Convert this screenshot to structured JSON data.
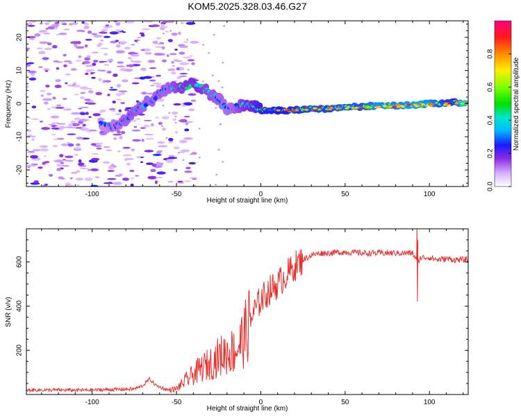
{
  "figure_title": "KOM5.2025.328.03.46.G27",
  "chart_data": [
    {
      "type": "heatmap",
      "name": "spectrogram",
      "title": "KOM5.2025.328.03.46.G27",
      "xlabel": "Height of straight line (km)",
      "ylabel": "Frequency (Hz)",
      "xlim": [
        -139,
        123
      ],
      "ylim": [
        -25,
        25
      ],
      "xticks": [
        -100,
        -50,
        0,
        50,
        100
      ],
      "yticks": [
        -20,
        -10,
        0,
        10,
        20
      ],
      "colorbar": {
        "label": "Normalized spectral amplitude",
        "range": [
          0,
          1
        ],
        "ticks": [
          "0.0",
          "0.2",
          "0.4",
          "0.6",
          "0.8"
        ]
      },
      "ridge": [
        {
          "x": -95,
          "y": -6,
          "a": 0.22
        },
        {
          "x": -90,
          "y": -7,
          "a": 0.25
        },
        {
          "x": -85,
          "y": -6.5,
          "a": 0.28
        },
        {
          "x": -80,
          "y": -5,
          "a": 0.3
        },
        {
          "x": -75,
          "y": -2,
          "a": 0.32
        },
        {
          "x": -70,
          "y": -0.5,
          "a": 0.3
        },
        {
          "x": -65,
          "y": 1,
          "a": 0.3
        },
        {
          "x": -60,
          "y": 3,
          "a": 0.3
        },
        {
          "x": -55,
          "y": 5,
          "a": 0.3
        },
        {
          "x": -50,
          "y": 4.5,
          "a": 0.35
        },
        {
          "x": -45,
          "y": 5,
          "a": 0.38
        },
        {
          "x": -40,
          "y": 6,
          "a": 0.4
        },
        {
          "x": -35,
          "y": 5,
          "a": 0.38
        },
        {
          "x": -30,
          "y": 3,
          "a": 0.33
        },
        {
          "x": -25,
          "y": 1.5,
          "a": 0.3
        },
        {
          "x": -20,
          "y": -2,
          "a": 0.28
        },
        {
          "x": -15,
          "y": -1,
          "a": 0.3
        },
        {
          "x": -10,
          "y": -0.5,
          "a": 0.38
        },
        {
          "x": -5,
          "y": -0.5,
          "a": 0.42
        },
        {
          "x": 0,
          "y": -2,
          "a": 0.5
        },
        {
          "x": 10,
          "y": -2,
          "a": 0.55
        },
        {
          "x": 20,
          "y": -2,
          "a": 0.58
        },
        {
          "x": 30,
          "y": -1.5,
          "a": 0.62
        },
        {
          "x": 40,
          "y": -1.5,
          "a": 0.6
        },
        {
          "x": 50,
          "y": -1,
          "a": 0.65
        },
        {
          "x": 60,
          "y": -1,
          "a": 0.62
        },
        {
          "x": 70,
          "y": -0.5,
          "a": 0.7
        },
        {
          "x": 80,
          "y": -0.5,
          "a": 0.68
        },
        {
          "x": 90,
          "y": -0.5,
          "a": 0.72
        },
        {
          "x": 100,
          "y": 0,
          "a": 0.7
        },
        {
          "x": 110,
          "y": 0,
          "a": 0.6
        },
        {
          "x": 115,
          "y": 0.5,
          "a": 0.55
        },
        {
          "x": 122,
          "y": 0,
          "a": 0.9
        }
      ]
    },
    {
      "type": "line",
      "name": "snr",
      "xlabel": "Height of straight line (km)",
      "ylabel": "SNR (v/v)",
      "xlim": [
        -139,
        123
      ],
      "ylim": [
        0,
        750
      ],
      "xticks": [
        -100,
        -50,
        0,
        50,
        100
      ],
      "yticks": [
        200,
        400,
        600
      ],
      "color": "#e8312f",
      "series": [
        {
          "name": "SNR",
          "x": [
            -139,
            -100,
            -75,
            -70,
            -66,
            -62,
            -55,
            -50,
            -45,
            -40,
            -35,
            -30,
            -25,
            -20,
            -15,
            -10,
            -5,
            0,
            5,
            10,
            15,
            20,
            25,
            30,
            35,
            40,
            50,
            60,
            70,
            80,
            90,
            93,
            95,
            100,
            105,
            110,
            115,
            123
          ],
          "y": [
            20,
            20,
            25,
            40,
            70,
            40,
            20,
            25,
            60,
            90,
            120,
            140,
            170,
            190,
            200,
            260,
            360,
            430,
            470,
            500,
            540,
            580,
            610,
            630,
            640,
            640,
            645,
            640,
            640,
            640,
            640,
            600,
            620,
            620,
            610,
            615,
            610,
            610
          ]
        }
      ]
    }
  ]
}
